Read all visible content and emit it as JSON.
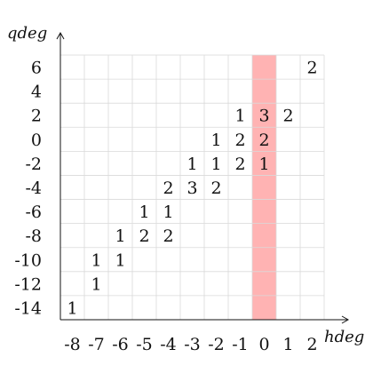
{
  "chart_data": {
    "type": "heatmap",
    "xlabel": "hdeg",
    "ylabel": "qdeg",
    "x_ticks": [
      -8,
      -7,
      -6,
      -5,
      -4,
      -3,
      -2,
      -1,
      0,
      1,
      2
    ],
    "y_ticks": [
      6,
      4,
      2,
      0,
      -2,
      -4,
      -6,
      -8,
      -10,
      -12,
      -14
    ],
    "highlight_column": 0,
    "highlight_color": "#ffb3b3",
    "grid": true,
    "cells": [
      {
        "x": 2,
        "y": 6,
        "value": "2"
      },
      {
        "x": -1,
        "y": 2,
        "value": "1"
      },
      {
        "x": 0,
        "y": 2,
        "value": "3"
      },
      {
        "x": 1,
        "y": 2,
        "value": "2"
      },
      {
        "x": -2,
        "y": 0,
        "value": "1"
      },
      {
        "x": -1,
        "y": 0,
        "value": "2"
      },
      {
        "x": 0,
        "y": 0,
        "value": "2"
      },
      {
        "x": -3,
        "y": -2,
        "value": "1"
      },
      {
        "x": -2,
        "y": -2,
        "value": "1"
      },
      {
        "x": -1,
        "y": -2,
        "value": "2"
      },
      {
        "x": 0,
        "y": -2,
        "value": "1"
      },
      {
        "x": -4,
        "y": -4,
        "value": "2"
      },
      {
        "x": -3,
        "y": -4,
        "value": "3"
      },
      {
        "x": -2,
        "y": -4,
        "value": "2"
      },
      {
        "x": -5,
        "y": -6,
        "value": "1"
      },
      {
        "x": -4,
        "y": -6,
        "value": "1"
      },
      {
        "x": -6,
        "y": -8,
        "value": "1"
      },
      {
        "x": -5,
        "y": -8,
        "value": "2"
      },
      {
        "x": -4,
        "y": -8,
        "value": "2"
      },
      {
        "x": -7,
        "y": -10,
        "value": "1"
      },
      {
        "x": -6,
        "y": -10,
        "value": "1"
      },
      {
        "x": -7,
        "y": -12,
        "value": "1"
      },
      {
        "x": -8,
        "y": -14,
        "value": "1"
      }
    ]
  }
}
